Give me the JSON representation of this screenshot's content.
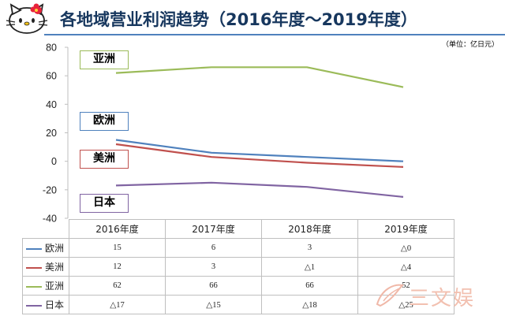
{
  "title": "各地域营业利润趋势（2016年度～2019年度）",
  "unit": "（单位：亿日元）",
  "watermark_text": "三文娱",
  "chart_data": {
    "type": "line",
    "categories": [
      "2016年度",
      "2017年度",
      "2018年度",
      "2019年度"
    ],
    "ylim": [
      -40,
      80
    ],
    "yticks": [
      -40,
      -20,
      0,
      20,
      40,
      60,
      80
    ],
    "grid": false,
    "series": [
      {
        "name": "欧洲",
        "color": "#4f81bd",
        "values": [
          15,
          6,
          3,
          0
        ],
        "display": [
          "15",
          "6",
          "3",
          "△0"
        ]
      },
      {
        "name": "美洲",
        "color": "#c0504d",
        "values": [
          12,
          3,
          -1,
          -4
        ],
        "display": [
          "12",
          "3",
          "△1",
          "△4"
        ]
      },
      {
        "name": "亚洲",
        "color": "#9bbb59",
        "values": [
          62,
          66,
          66,
          52
        ],
        "display": [
          "62",
          "66",
          "66",
          "52"
        ]
      },
      {
        "name": "日本",
        "color": "#8064a2",
        "values": [
          -17,
          -15,
          -18,
          -25
        ],
        "display": [
          "△17",
          "△15",
          "△18",
          "△25"
        ]
      }
    ]
  }
}
